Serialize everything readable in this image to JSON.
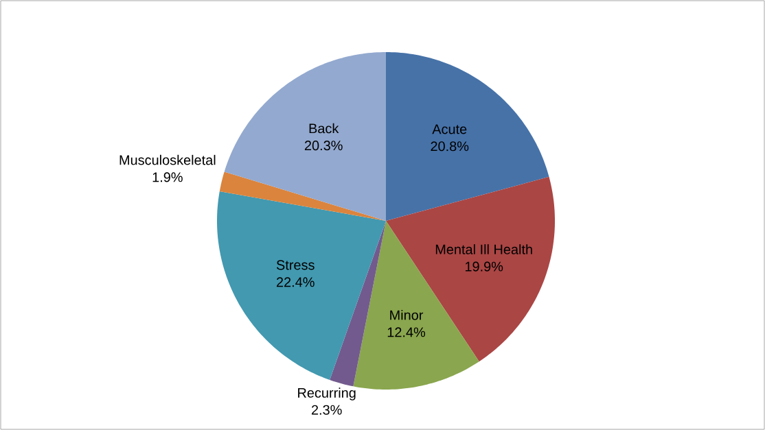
{
  "chart_data": {
    "type": "pie",
    "categories": [
      "Acute",
      "Mental Ill Health",
      "Minor",
      "Recurring",
      "Stress",
      "Musculoskeletal",
      "Back"
    ],
    "values": [
      20.8,
      19.9,
      12.4,
      2.3,
      22.4,
      1.9,
      20.3
    ],
    "colors": [
      "#4672a8",
      "#aa4644",
      "#8aa64e",
      "#725a8e",
      "#4299b0",
      "#db843d",
      "#93a9cf"
    ],
    "value_labels": [
      "20.8%",
      "19.9%",
      "12.4%",
      "2.3%",
      "22.4%",
      "1.9%",
      "20.3%"
    ]
  }
}
